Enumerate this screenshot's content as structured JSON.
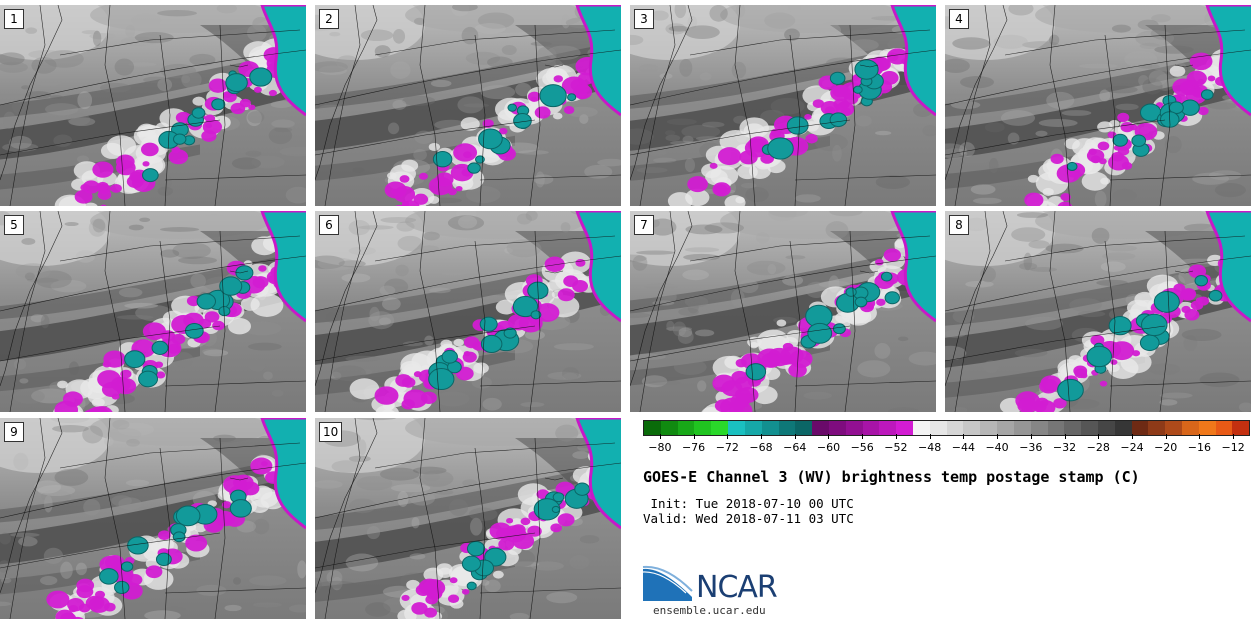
{
  "panels": [
    {
      "label": "1"
    },
    {
      "label": "2"
    },
    {
      "label": "3"
    },
    {
      "label": "4"
    },
    {
      "label": "5"
    },
    {
      "label": "6"
    },
    {
      "label": "7"
    },
    {
      "label": "8"
    },
    {
      "label": "9"
    },
    {
      "label": "10"
    }
  ],
  "colorbar": {
    "ticks": [
      "−80",
      "−76",
      "−72",
      "−68",
      "−64",
      "−60",
      "−56",
      "−52",
      "−48",
      "−44",
      "−40",
      "−36",
      "−32",
      "−28",
      "−24",
      "−20",
      "−16",
      "−12"
    ],
    "min": -82,
    "max": -10,
    "colors": [
      "#0a6b0a",
      "#108a10",
      "#18a818",
      "#20c420",
      "#2ad82a",
      "#1ac0c0",
      "#16a8a8",
      "#129090",
      "#0e7878",
      "#0b6666",
      "#6a0a6a",
      "#7e0c7e",
      "#921092",
      "#a814a8",
      "#bc18bc",
      "#d21cd2",
      "#f4f4f4",
      "#e6e6e6",
      "#d6d6d6",
      "#c6c6c6",
      "#b6b6b6",
      "#a6a6a6",
      "#969696",
      "#868686",
      "#767676",
      "#666666",
      "#565656",
      "#464646",
      "#363636",
      "#6e2a14",
      "#8e3a18",
      "#ae4a1a",
      "#d8661a",
      "#f0781a",
      "#e85a16",
      "#c43010"
    ]
  },
  "title": "GOES-E Channel 3 (WV) brightness temp postage stamp (C)",
  "init": " Init: Tue 2018-07-10 00 UTC",
  "valid": "Valid: Wed 2018-07-11 03 UTC",
  "logo": {
    "text": "NCAR",
    "url": "ensemble.ucar.edu",
    "icon": "ncar-logo-icon"
  }
}
